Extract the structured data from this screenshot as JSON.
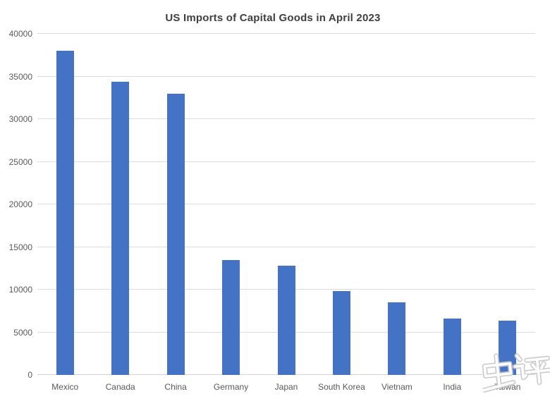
{
  "chart": {
    "title": "US Imports of Capital Goods in April 2023"
  },
  "watermark": {
    "text": "中评"
  },
  "chart_data": {
    "type": "bar",
    "title": "US Imports of Capital Goods in April 2023",
    "categories": [
      "Mexico",
      "Canada",
      "China",
      "Germany",
      "Japan",
      "South Korea",
      "Vietnam",
      "India",
      "Taiwan"
    ],
    "values": [
      38000,
      34400,
      33000,
      13450,
      12850,
      9850,
      8550,
      6650,
      6400
    ],
    "xlabel": "",
    "ylabel": "",
    "ylim": [
      0,
      40000
    ],
    "ytick_interval": 5000,
    "ytick_labels": [
      "0",
      "5000",
      "10000",
      "15000",
      "20000",
      "25000",
      "30000",
      "35000",
      "40000"
    ],
    "grid": true,
    "legend": false,
    "colors": {
      "bar": "#4472C4",
      "gridline": "#DCDCDC",
      "axis_line": "#D2D2D2",
      "tick_label": "#595959",
      "title": "#3F3F3F",
      "background": "#FFFFFF"
    }
  }
}
